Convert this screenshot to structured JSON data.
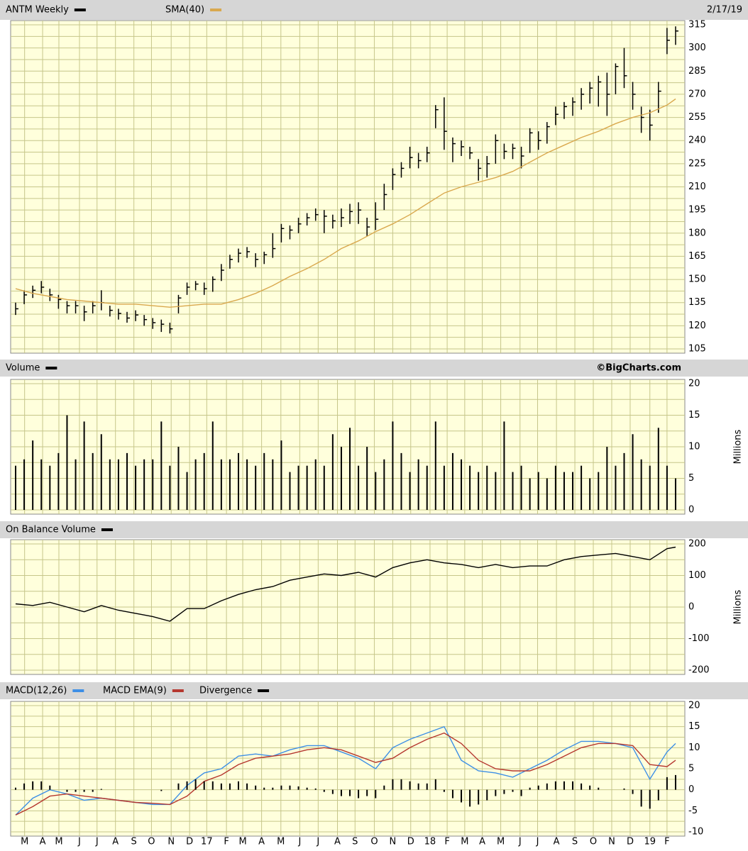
{
  "chart_data": [
    {
      "type": "ohlc",
      "date": "2/17/19",
      "x": [
        0,
        2,
        4,
        6,
        8,
        10,
        12,
        14,
        16,
        18,
        20,
        22,
        24,
        26,
        28,
        30,
        32,
        34,
        36,
        38,
        40,
        42,
        44,
        46,
        48,
        50,
        52,
        54,
        56,
        58,
        60,
        62,
        64,
        66,
        68,
        70,
        72,
        74,
        76,
        78,
        80,
        82,
        84,
        86,
        88,
        90,
        92,
        94,
        96,
        98,
        100,
        102,
        104,
        106,
        108,
        110,
        112,
        114,
        116,
        118,
        120,
        122,
        124,
        126,
        128,
        130,
        132,
        134,
        136,
        138,
        140,
        142,
        144,
        146,
        148,
        150,
        152,
        154
      ],
      "series": [
        {
          "name": "ANTM Weekly",
          "color": "#000000",
          "high": [
            135,
            143,
            146,
            149,
            144,
            140,
            136,
            136,
            133,
            136,
            143,
            133,
            131,
            129,
            130,
            127,
            125,
            124,
            122,
            140,
            148,
            149,
            148,
            152,
            160,
            166,
            170,
            171,
            167,
            168,
            180,
            186,
            185,
            190,
            193,
            196,
            195,
            192,
            196,
            199,
            200,
            190,
            200,
            212,
            222,
            226,
            236,
            232,
            236,
            263,
            268,
            242,
            240,
            236,
            228,
            230,
            244,
            238,
            238,
            236,
            248,
            246,
            252,
            262,
            265,
            268,
            274,
            278,
            282,
            284,
            290,
            300,
            278,
            262,
            260,
            278,
            313,
            314
          ],
          "low": [
            127,
            134,
            138,
            141,
            136,
            131,
            128,
            128,
            123,
            128,
            130,
            126,
            124,
            122,
            123,
            120,
            118,
            116,
            115,
            128,
            140,
            143,
            140,
            142,
            149,
            157,
            161,
            164,
            158,
            160,
            164,
            174,
            176,
            180,
            185,
            188,
            180,
            183,
            184,
            186,
            186,
            178,
            182,
            195,
            208,
            216,
            222,
            222,
            226,
            248,
            234,
            226,
            230,
            228,
            214,
            216,
            225,
            228,
            228,
            222,
            232,
            234,
            238,
            250,
            254,
            256,
            260,
            264,
            262,
            256,
            270,
            274,
            260,
            245,
            240,
            258,
            296,
            302
          ],
          "values": [
            131,
            140,
            143,
            145,
            140,
            137,
            133,
            133,
            129,
            133,
            135,
            130,
            128,
            125,
            127,
            124,
            122,
            121,
            118,
            138,
            145,
            147,
            144,
            150,
            156,
            163,
            167,
            168,
            163,
            166,
            170,
            183,
            182,
            186,
            190,
            192,
            191,
            188,
            190,
            194,
            195,
            184,
            189,
            205,
            218,
            222,
            229,
            227,
            232,
            260,
            246,
            238,
            236,
            232,
            222,
            225,
            240,
            233,
            235,
            230,
            245,
            240,
            249,
            257,
            262,
            265,
            270,
            274,
            278,
            270,
            288,
            282,
            270,
            255,
            250,
            272,
            305,
            311
          ]
        },
        {
          "name": "SMA(40)",
          "type": "line",
          "color": "#d9a84e",
          "x": [
            0,
            4,
            8,
            12,
            16,
            20,
            24,
            28,
            32,
            36,
            40,
            44,
            48,
            52,
            56,
            60,
            64,
            68,
            72,
            76,
            80,
            84,
            88,
            92,
            96,
            100,
            104,
            108,
            112,
            116,
            120,
            124,
            128,
            132,
            136,
            140,
            144,
            148,
            152,
            154
          ],
          "values": [
            144,
            141,
            139,
            137,
            136,
            135,
            134,
            134,
            133,
            132,
            133,
            134,
            134,
            137,
            141,
            146,
            152,
            157,
            163,
            170,
            175,
            181,
            186,
            192,
            199,
            206,
            210,
            213,
            216,
            220,
            226,
            232,
            237,
            242,
            246,
            251,
            255,
            258,
            263,
            267
          ]
        }
      ],
      "xlim": [
        0,
        155
      ],
      "ylim": [
        105,
        315
      ],
      "yticks": [
        105,
        120,
        135,
        150,
        165,
        180,
        195,
        210,
        225,
        240,
        255,
        270,
        285,
        300,
        315
      ],
      "grid": true
    },
    {
      "type": "bar",
      "source": "©BigCharts.com",
      "y_label": "Millions",
      "x": [
        0,
        2,
        4,
        6,
        8,
        10,
        12,
        14,
        16,
        18,
        20,
        22,
        24,
        26,
        28,
        30,
        32,
        34,
        36,
        38,
        40,
        42,
        44,
        46,
        48,
        50,
        52,
        54,
        56,
        58,
        60,
        62,
        64,
        66,
        68,
        70,
        72,
        74,
        76,
        78,
        80,
        82,
        84,
        86,
        88,
        90,
        92,
        94,
        96,
        98,
        100,
        102,
        104,
        106,
        108,
        110,
        112,
        114,
        116,
        118,
        120,
        122,
        124,
        126,
        128,
        130,
        132,
        134,
        136,
        138,
        140,
        142,
        144,
        146,
        148,
        150,
        152,
        154
      ],
      "series": [
        {
          "name": "Volume",
          "color": "#000000",
          "values": [
            7,
            8,
            11,
            8,
            7,
            9,
            15,
            8,
            14,
            9,
            12,
            8,
            8,
            9,
            7,
            8,
            8,
            14,
            7,
            10,
            6,
            8,
            9,
            14,
            8,
            8,
            9,
            8,
            7,
            9,
            8,
            11,
            6,
            7,
            7,
            8,
            7,
            12,
            10,
            13,
            7,
            10,
            6,
            8,
            14,
            9,
            6,
            8,
            7,
            14,
            7,
            9,
            8,
            7,
            6,
            7,
            6,
            14,
            6,
            7,
            5,
            6,
            5,
            7,
            6,
            6,
            7,
            5,
            6,
            10,
            7,
            9,
            12,
            8,
            7,
            13,
            7,
            5
          ]
        }
      ],
      "xlim": [
        0,
        155
      ],
      "ylim": [
        0,
        20
      ],
      "yticks": [
        0,
        5,
        10,
        15,
        20
      ],
      "grid": true
    },
    {
      "type": "line",
      "y_label": "Millions",
      "x": [
        0,
        4,
        8,
        12,
        16,
        20,
        24,
        28,
        32,
        36,
        40,
        44,
        48,
        52,
        56,
        60,
        64,
        68,
        72,
        76,
        80,
        84,
        88,
        92,
        96,
        100,
        104,
        108,
        112,
        116,
        120,
        124,
        128,
        132,
        136,
        140,
        144,
        148,
        152,
        154
      ],
      "series": [
        {
          "name": "On Balance Volume",
          "color": "#000000",
          "values": [
            10,
            5,
            15,
            0,
            -15,
            5,
            -10,
            -20,
            -30,
            -45,
            -5,
            -5,
            20,
            40,
            55,
            65,
            85,
            95,
            105,
            100,
            110,
            95,
            125,
            140,
            150,
            140,
            135,
            125,
            135,
            125,
            130,
            130,
            150,
            160,
            165,
            170,
            160,
            150,
            185,
            190
          ]
        }
      ],
      "xlim": [
        0,
        155
      ],
      "ylim": [
        -200,
        200
      ],
      "yticks": [
        -200,
        -100,
        0,
        100,
        200
      ],
      "grid": true
    },
    {
      "type": "line",
      "x": [
        0,
        4,
        8,
        12,
        16,
        20,
        24,
        28,
        32,
        36,
        40,
        44,
        48,
        52,
        56,
        60,
        64,
        68,
        72,
        76,
        80,
        84,
        88,
        92,
        96,
        100,
        104,
        108,
        112,
        116,
        120,
        124,
        128,
        132,
        136,
        140,
        144,
        148,
        152,
        154
      ],
      "series": [
        {
          "name": "MACD(12,26)",
          "color": "#3d8fe6",
          "values": [
            -6,
            -2,
            0,
            -1,
            -2.5,
            -2,
            -2.5,
            -3,
            -3.5,
            -3.5,
            1,
            4,
            5,
            8,
            8.5,
            8,
            9.5,
            10.5,
            10.5,
            9,
            7.5,
            5,
            10,
            12,
            13.5,
            15,
            7,
            4.5,
            4,
            3,
            5,
            7,
            9.5,
            11.5,
            11.5,
            11,
            10,
            2.5,
            9,
            11
          ]
        },
        {
          "name": "MACD EMA(9)",
          "color": "#b5372f",
          "values": [
            -6,
            -4,
            -1.5,
            -1,
            -1.5,
            -2,
            -2.5,
            -3,
            -3.2,
            -3.5,
            -1.5,
            2,
            3.5,
            6,
            7.5,
            8,
            8.5,
            9.5,
            10,
            9.5,
            8,
            6.5,
            7.5,
            10,
            12,
            13.5,
            11,
            7,
            5,
            4.5,
            4.5,
            6,
            8,
            10,
            11,
            11,
            10.5,
            6,
            5.5,
            7
          ]
        },
        {
          "name": "Divergence",
          "type": "bar",
          "color": "#000000",
          "x": [
            0,
            2,
            4,
            6,
            8,
            10,
            12,
            14,
            16,
            18,
            20,
            22,
            24,
            26,
            28,
            30,
            32,
            34,
            36,
            38,
            40,
            42,
            44,
            46,
            48,
            50,
            52,
            54,
            56,
            58,
            60,
            62,
            64,
            66,
            68,
            70,
            72,
            74,
            76,
            78,
            80,
            82,
            84,
            86,
            88,
            90,
            92,
            94,
            96,
            98,
            100,
            102,
            104,
            106,
            108,
            110,
            112,
            114,
            116,
            118,
            120,
            122,
            124,
            126,
            128,
            130,
            132,
            134,
            136,
            138,
            140,
            142,
            144,
            146,
            148,
            150,
            152,
            154
          ],
          "values": [
            0.5,
            1.5,
            2,
            2,
            1,
            0,
            -0.5,
            -0.5,
            -0.5,
            -0.5,
            0.2,
            0,
            0,
            0,
            0,
            0,
            0,
            -0.3,
            0,
            1.5,
            2,
            2.5,
            2,
            2,
            1.5,
            1.5,
            2,
            1.5,
            1,
            0.5,
            0.5,
            1,
            1,
            0.8,
            0.5,
            0.3,
            -0.5,
            -1,
            -1.5,
            -1.5,
            -2,
            -1.5,
            -2,
            1,
            2.5,
            2.5,
            2,
            1.5,
            1.5,
            2.5,
            -0.5,
            -2,
            -3,
            -4,
            -3.5,
            -2.5,
            -1.5,
            -1,
            -0.5,
            -1.5,
            0.5,
            1,
            1.5,
            2,
            2,
            2,
            1.5,
            1,
            0.5,
            0,
            0,
            0.3,
            -1,
            -4,
            -4.5,
            -2.5,
            3,
            3.5
          ]
        }
      ],
      "xlim": [
        0,
        155
      ],
      "ylim": [
        -10,
        20
      ],
      "yticks": [
        -10,
        -5,
        0,
        5,
        10,
        15,
        20
      ],
      "grid": true,
      "xticks": [
        {
          "value": 2.1,
          "label": "M"
        },
        {
          "value": 6.3,
          "label": "A"
        },
        {
          "value": 10.1,
          "label": "M"
        },
        {
          "value": 14.9,
          "label": "J"
        },
        {
          "value": 19.0,
          "label": "J"
        },
        {
          "value": 23.3,
          "label": "A"
        },
        {
          "value": 27.6,
          "label": "S"
        },
        {
          "value": 31.7,
          "label": "O"
        },
        {
          "value": 36.3,
          "label": "N"
        },
        {
          "value": 40.6,
          "label": "D"
        },
        {
          "value": 44.6,
          "label": "17"
        },
        {
          "value": 49.2,
          "label": "F"
        },
        {
          "value": 53.0,
          "label": "M"
        },
        {
          "value": 57.4,
          "label": "A"
        },
        {
          "value": 61.9,
          "label": "M"
        },
        {
          "value": 66.3,
          "label": "J"
        },
        {
          "value": 70.6,
          "label": "J"
        },
        {
          "value": 75.1,
          "label": "A"
        },
        {
          "value": 79.2,
          "label": "S"
        },
        {
          "value": 83.7,
          "label": "O"
        },
        {
          "value": 88.0,
          "label": "N"
        },
        {
          "value": 92.2,
          "label": "D"
        },
        {
          "value": 96.7,
          "label": "18"
        },
        {
          "value": 100.7,
          "label": "F"
        },
        {
          "value": 104.8,
          "label": "M"
        },
        {
          "value": 108.9,
          "label": "A"
        },
        {
          "value": 113.2,
          "label": "M"
        },
        {
          "value": 117.7,
          "label": "J"
        },
        {
          "value": 121.8,
          "label": "J"
        },
        {
          "value": 126.2,
          "label": "A"
        },
        {
          "value": 130.5,
          "label": "S"
        },
        {
          "value": 134.8,
          "label": "O"
        },
        {
          "value": 139.1,
          "label": "N"
        },
        {
          "value": 143.4,
          "label": "D"
        },
        {
          "value": 148.0,
          "label": "19"
        },
        {
          "value": 152.0,
          "label": "F"
        }
      ]
    }
  ]
}
